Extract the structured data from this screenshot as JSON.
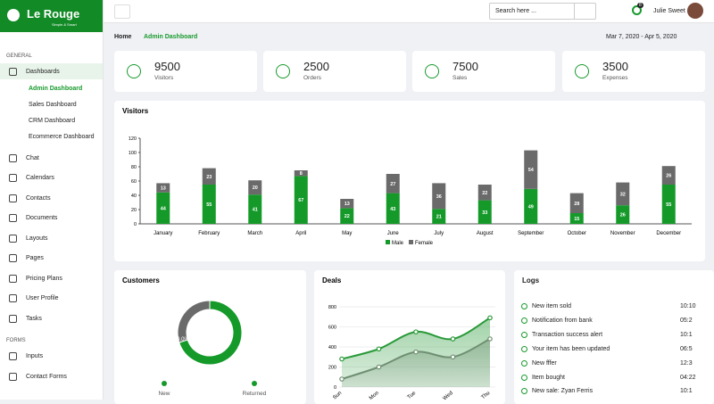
{
  "brand": {
    "name": "Le Rouge",
    "tagline": "Simple & Smart"
  },
  "sidebar": {
    "sections": [
      {
        "title": "GENERAL",
        "items": [
          {
            "label": "Dashboards",
            "children": [
              "Admin Dashboard",
              "Sales Dashboard",
              "CRM Dashboard",
              "Ecommerce Dashboard"
            ]
          },
          {
            "label": "Chat"
          },
          {
            "label": "Calendars"
          },
          {
            "label": "Contacts"
          },
          {
            "label": "Documents"
          },
          {
            "label": "Layouts"
          },
          {
            "label": "Pages"
          },
          {
            "label": "Pricing Plans"
          },
          {
            "label": "User Profile"
          },
          {
            "label": "Tasks"
          }
        ]
      },
      {
        "title": "FORMS",
        "items": [
          {
            "label": "Inputs"
          },
          {
            "label": "Contact Forms"
          }
        ]
      }
    ]
  },
  "header": {
    "search_placeholder": "Search here ...",
    "notifications": "8",
    "user": "Julie Sweet"
  },
  "breadcrumb": {
    "home": "Home",
    "current": "Admin Dashboard",
    "date_range": "Mar 7, 2020 - Apr 5, 2020"
  },
  "stats": [
    {
      "value": "9500",
      "label": "Visitors"
    },
    {
      "value": "2500",
      "label": "Orders"
    },
    {
      "value": "7500",
      "label": "Sales"
    },
    {
      "value": "3500",
      "label": "Expenses"
    }
  ],
  "logs": {
    "title": "Logs",
    "items": [
      {
        "text": "New item sold",
        "time": "10:10"
      },
      {
        "text": "Notification from bank",
        "time": "05:2"
      },
      {
        "text": "Transaction success alert",
        "time": "10:1"
      },
      {
        "text": "Your item has been updated",
        "time": "06:5"
      },
      {
        "text": "New fffer",
        "time": "12:3"
      },
      {
        "text": "Item bought",
        "time": "04:22"
      },
      {
        "text": "New sale: Zyan Ferris",
        "time": "10:1"
      }
    ]
  },
  "chart_data": [
    {
      "type": "bar",
      "title": "Visitors",
      "stacked": true,
      "categories": [
        "January",
        "February",
        "March",
        "April",
        "May",
        "June",
        "July",
        "August",
        "September",
        "October",
        "November",
        "December"
      ],
      "series": [
        {
          "name": "Male",
          "color": "#159a2a",
          "values": [
            44,
            55,
            41,
            67,
            22,
            43,
            21,
            33,
            49,
            15,
            26,
            55
          ]
        },
        {
          "name": "Female",
          "color": "#6a6a6a",
          "values": [
            13,
            23,
            20,
            8,
            13,
            27,
            36,
            22,
            54,
            28,
            32,
            26
          ]
        }
      ],
      "ylim": [
        0,
        120
      ],
      "yticks": [
        0,
        20,
        40,
        60,
        80,
        100,
        120
      ],
      "legend": "bottom"
    },
    {
      "type": "pie",
      "title": "Customers",
      "donut": true,
      "categories": [
        "New",
        "Returned"
      ],
      "values": [
        30,
        70
      ],
      "value_labels": [
        "30.0%",
        "70.0%"
      ],
      "colors": [
        "#6a6a6a",
        "#159a2a"
      ]
    },
    {
      "type": "area",
      "title": "Deals",
      "categories": [
        "Sun",
        "Mon",
        "Tue",
        "Wed",
        "Thu"
      ],
      "series": [
        {
          "color": "#2a9a3a",
          "values": [
            280,
            380,
            550,
            480,
            690
          ]
        },
        {
          "color": "#6f8f72",
          "values": [
            80,
            200,
            350,
            300,
            480
          ]
        }
      ],
      "ylim": [
        0,
        800
      ],
      "yticks": [
        0,
        200,
        400,
        600,
        800
      ]
    }
  ]
}
